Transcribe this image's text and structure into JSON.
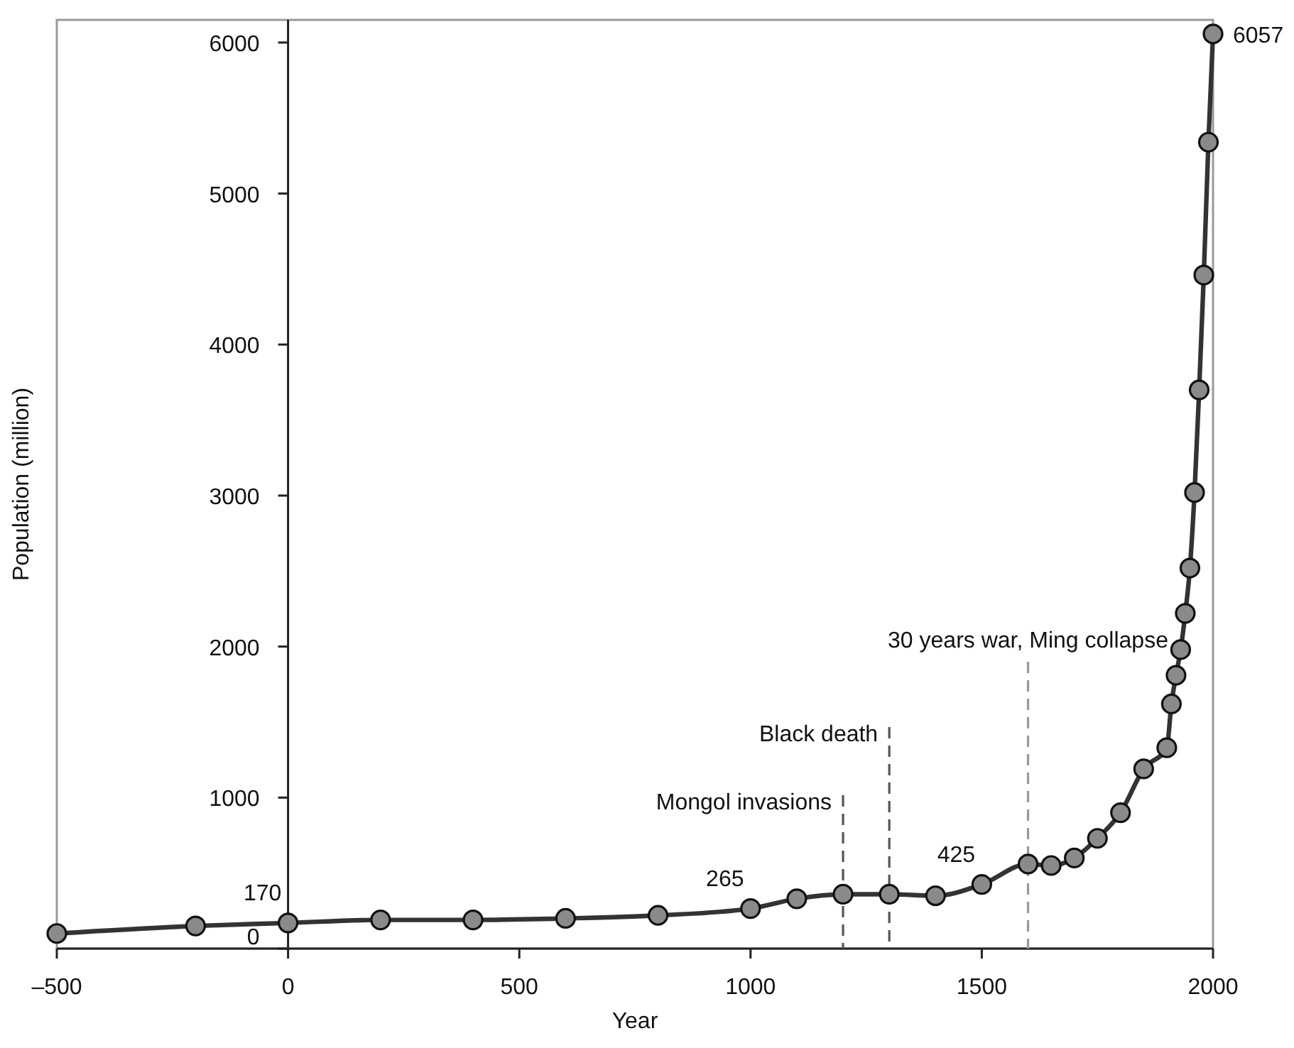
{
  "chart_data": {
    "type": "line",
    "xlabel": "Year",
    "ylabel": "Population (million)",
    "x": [
      -500,
      -200,
      0,
      200,
      400,
      600,
      800,
      1000,
      1100,
      1200,
      1300,
      1400,
      1500,
      1600,
      1650,
      1700,
      1750,
      1800,
      1850,
      1900,
      1910,
      1920,
      1930,
      1940,
      1950,
      1960,
      1970,
      1980,
      1990,
      2000
    ],
    "series": [
      {
        "color": "#333333",
        "values": [
          100,
          150,
          170,
          190,
          190,
          200,
          220,
          265,
          330,
          360,
          360,
          350,
          425,
          560,
          550,
          600,
          730,
          900,
          1190,
          1330,
          1620,
          1810,
          1980,
          2220,
          2520,
          3020,
          3700,
          4460,
          5340,
          6057
        ],
        "value_labels": [
          null,
          null,
          "170",
          null,
          null,
          null,
          null,
          "265",
          null,
          null,
          null,
          null,
          "425",
          null,
          null,
          null,
          null,
          null,
          null,
          null,
          null,
          null,
          null,
          null,
          null,
          null,
          null,
          null,
          null,
          "6057"
        ]
      }
    ],
    "marker": "circle",
    "line_style": "solid",
    "xlim": [
      -500,
      2000
    ],
    "xticks": [
      {
        "value": -500,
        "label": "–500"
      },
      0,
      500,
      1000,
      1500,
      2000
    ],
    "ylim": [
      0,
      6150
    ],
    "yticks": [
      0,
      1000,
      2000,
      3000,
      4000,
      5000,
      6000
    ],
    "grid": false,
    "ref_lines": [
      {
        "axis": "x",
        "value": 1200,
        "label": "Mongol invasions",
        "color": "#555555",
        "line_style": "dashed"
      },
      {
        "axis": "x",
        "value": 1300,
        "label": "Black death",
        "color": "#555555",
        "line_style": "dashed"
      },
      {
        "axis": "x",
        "value": 1600,
        "label": "30 years war, Ming collapse",
        "color": "#999999",
        "line_style": "dashed"
      }
    ]
  }
}
